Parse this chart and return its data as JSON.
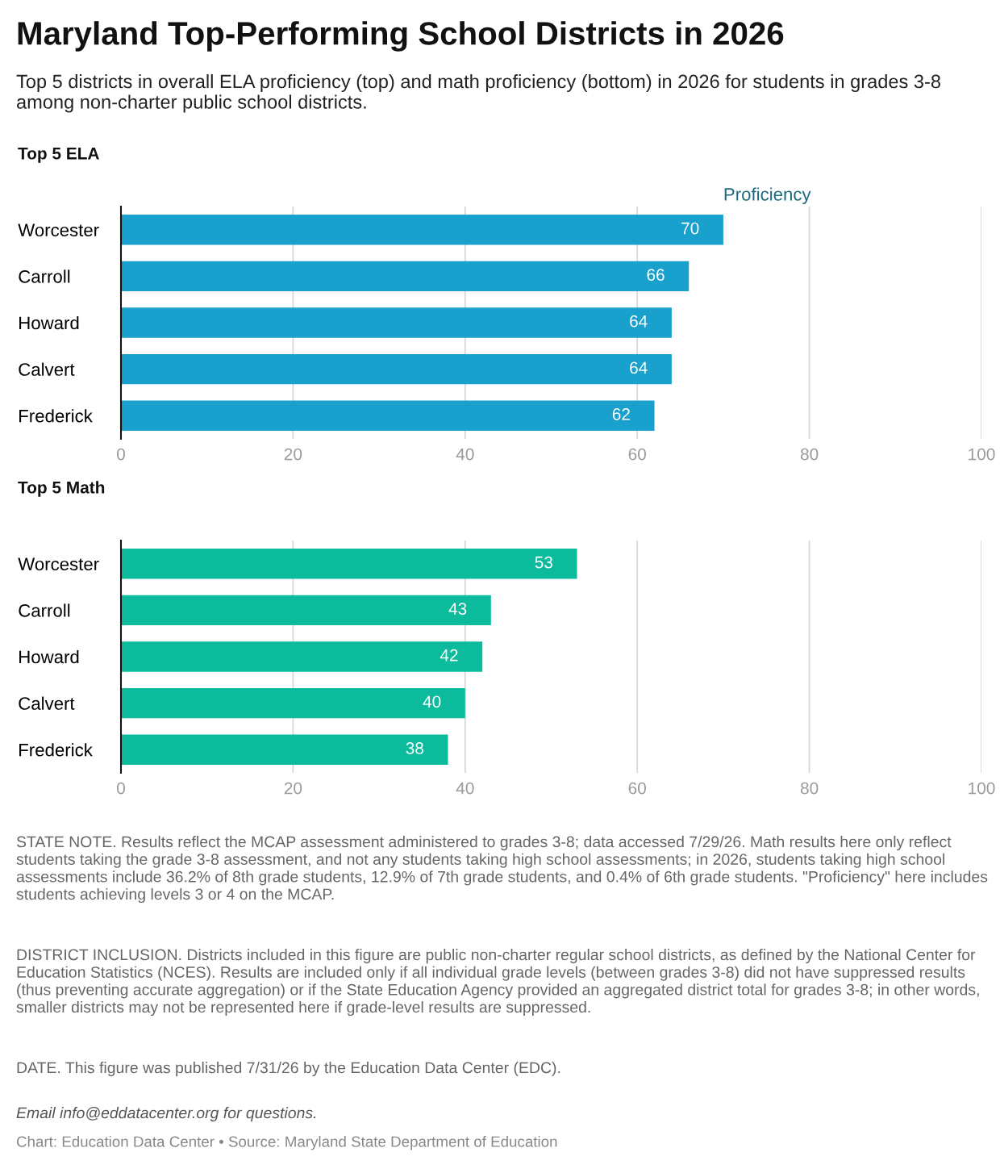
{
  "chart_data": [
    {
      "type": "other",
      "title": "Maryland Top-Performing School Districts in 2026",
      "subtitle": "Top 5 districts in overall ELA proficiency (top) and math proficiency (bottom) in 2026 for students in grades 3-8 among non-charter public school districts."
    },
    {
      "type": "bar",
      "orientation": "horizontal",
      "title": "Top 5 ELA",
      "categories": [
        "Worcester",
        "Carroll",
        "Howard",
        "Calvert",
        "Frederick"
      ],
      "series": [
        {
          "name": "Proficiency",
          "color": "#1aa0cc",
          "values": [
            70,
            66,
            64,
            64,
            62
          ]
        }
      ],
      "xlim": [
        0,
        100
      ],
      "xticks": [
        0,
        20,
        40,
        60,
        80,
        100
      ],
      "grid": "x",
      "data_labels": true,
      "legend": "top right"
    },
    {
      "type": "bar",
      "orientation": "horizontal",
      "title": "Top 5 Math",
      "categories": [
        "Worcester",
        "Carroll",
        "Howard",
        "Calvert",
        "Frederick"
      ],
      "series": [
        {
          "color": "#0bbb9c",
          "values": [
            53,
            43,
            42,
            40,
            38
          ]
        }
      ],
      "xlim": [
        0,
        100
      ],
      "xticks": [
        0,
        20,
        40,
        60,
        80,
        100
      ],
      "grid": "x",
      "data_labels": true,
      "annotations": [
        "STATE NOTE. Results reflect the MCAP assessment administered to grades 3-8; data accessed 7/29/26. Math results here only reflect students taking the grade 3-8 assessment, and not any students taking high school assessments; in 2026, students taking high school assessments include 36.2% of 8th grade students, 12.9% of 7th grade students, and 0.4% of 6th grade students. \"Proficiency\" here includes students achieving levels 3 or 4 on the MCAP.",
        "DISTRICT INCLUSION. Districts included in this figure are public non-charter regular school districts, as defined by the National Center for Education Statistics (NCES). Results are included only if all individual grade levels (between grades 3-8) did not have suppressed results (thus preventing accurate aggregation) or if the State Education Agency provided an aggregated district total for grades 3-8; in other words, smaller districts may not be represented here if grade-level results are suppressed.",
        "DATE. This figure was published 7/31/26 by the Education Data Center (EDC).",
        "Email info@eddatacenter.org for questions.",
        "Chart: Education Data Center • Source: Maryland State Department of Education"
      ]
    }
  ]
}
